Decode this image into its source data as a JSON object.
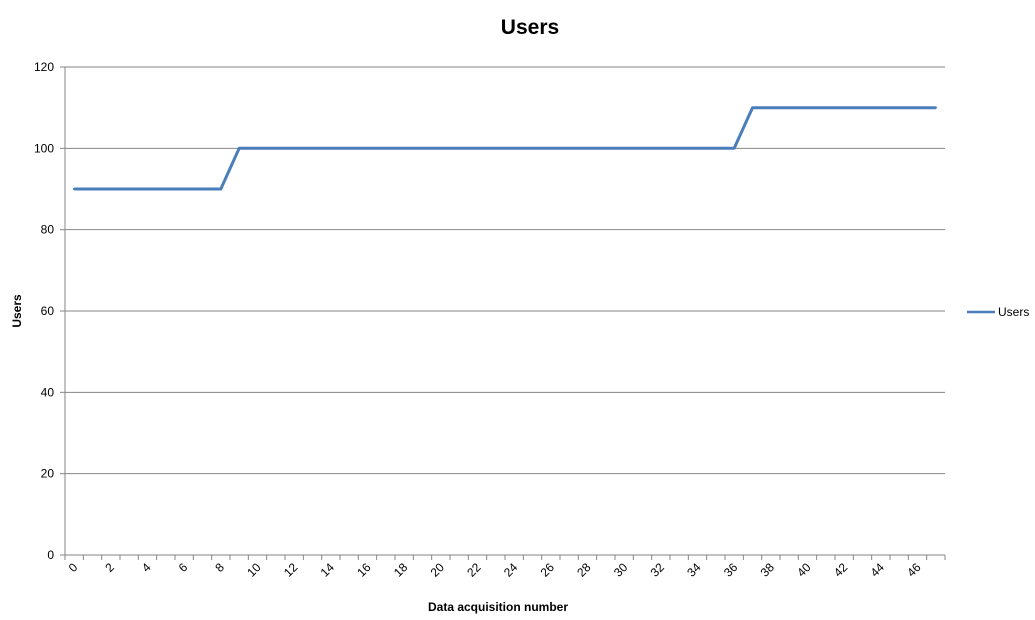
{
  "chart_data": {
    "type": "line",
    "title": "Users",
    "xlabel": "Data acquisition number",
    "ylabel": "Users",
    "xlim": [
      0,
      47
    ],
    "ylim": [
      0,
      120
    ],
    "y_ticks": [
      0,
      20,
      40,
      60,
      80,
      100,
      120
    ],
    "x_tick_labels": [
      0,
      2,
      4,
      6,
      8,
      10,
      12,
      14,
      16,
      18,
      20,
      22,
      24,
      26,
      28,
      30,
      32,
      34,
      36,
      38,
      40,
      42,
      44,
      46
    ],
    "grid": "horizontal",
    "legend_position": "right",
    "series": [
      {
        "name": "Users",
        "color": "#4a7ebb",
        "x": [
          0,
          1,
          2,
          3,
          4,
          5,
          6,
          7,
          8,
          9,
          10,
          11,
          12,
          13,
          14,
          15,
          16,
          17,
          18,
          19,
          20,
          21,
          22,
          23,
          24,
          25,
          26,
          27,
          28,
          29,
          30,
          31,
          32,
          33,
          34,
          35,
          36,
          37,
          38,
          39,
          40,
          41,
          42,
          43,
          44,
          45,
          46,
          47
        ],
        "values": [
          90,
          90,
          90,
          90,
          90,
          90,
          90,
          90,
          90,
          100,
          100,
          100,
          100,
          100,
          100,
          100,
          100,
          100,
          100,
          100,
          100,
          100,
          100,
          100,
          100,
          100,
          100,
          100,
          100,
          100,
          100,
          100,
          100,
          100,
          100,
          100,
          100,
          110,
          110,
          110,
          110,
          110,
          110,
          110,
          110,
          110,
          110,
          110
        ]
      }
    ]
  }
}
